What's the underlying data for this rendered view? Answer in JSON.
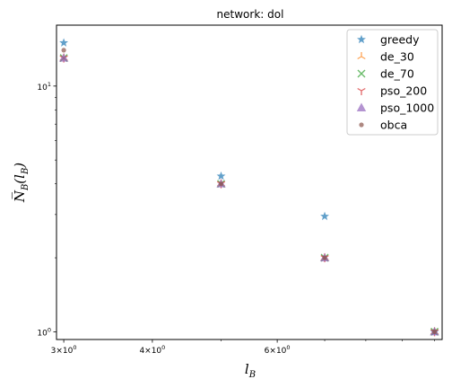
{
  "chart_data": {
    "type": "scatter",
    "title": "network: dol",
    "xlabel": "l_B",
    "ylabel": "N_B(l_B)",
    "xscale": "log",
    "yscale": "log",
    "xlim": [
      2.93,
      10.25
    ],
    "ylim": [
      0.93,
      17.7
    ],
    "x_ticks": [
      {
        "value": 3,
        "label": "3×10⁰",
        "base": "3×10",
        "exp": "0"
      },
      {
        "value": 4,
        "label": "4×10⁰",
        "base": "4×10",
        "exp": "0"
      },
      {
        "value": 6,
        "label": "6×10⁰",
        "base": "6×10",
        "exp": "0"
      }
    ],
    "y_ticks": [
      {
        "value": 1,
        "label": "10⁰",
        "base": "10",
        "exp": "0"
      },
      {
        "value": 10,
        "label": "10¹",
        "base": "10",
        "exp": "1"
      }
    ],
    "grid": false,
    "legend_position": "top-right",
    "series": [
      {
        "name": "greedy",
        "marker": "star",
        "color": "#1f77b4",
        "points": [
          [
            3,
            15.0
          ],
          [
            5,
            4.3
          ],
          [
            7,
            2.95
          ],
          [
            10,
            1.0
          ]
        ]
      },
      {
        "name": "de_30",
        "marker": "tri",
        "color": "#ff7f0e",
        "points": [
          [
            3,
            13.0
          ],
          [
            5,
            4.0
          ],
          [
            7,
            2.0
          ],
          [
            10,
            1.0
          ]
        ]
      },
      {
        "name": "de_70",
        "marker": "x",
        "color": "#2ca02c",
        "points": [
          [
            3,
            13.0
          ],
          [
            5,
            4.0
          ],
          [
            7,
            2.0
          ],
          [
            10,
            1.0
          ]
        ]
      },
      {
        "name": "pso_200",
        "marker": "y",
        "color": "#d62728",
        "points": [
          [
            3,
            13.0
          ],
          [
            5,
            4.0
          ],
          [
            7,
            2.0
          ],
          [
            10,
            1.0
          ]
        ]
      },
      {
        "name": "pso_1000",
        "marker": "triangle",
        "color": "#9467bd",
        "points": [
          [
            3,
            13.0
          ],
          [
            5,
            4.0
          ],
          [
            7,
            2.0
          ],
          [
            10,
            1.0
          ]
        ]
      },
      {
        "name": "obca",
        "marker": "circle",
        "color": "#8c564b",
        "points": [
          [
            3,
            14.0
          ],
          [
            5,
            4.0
          ],
          [
            7,
            2.0
          ],
          [
            10,
            1.0
          ]
        ]
      }
    ]
  }
}
